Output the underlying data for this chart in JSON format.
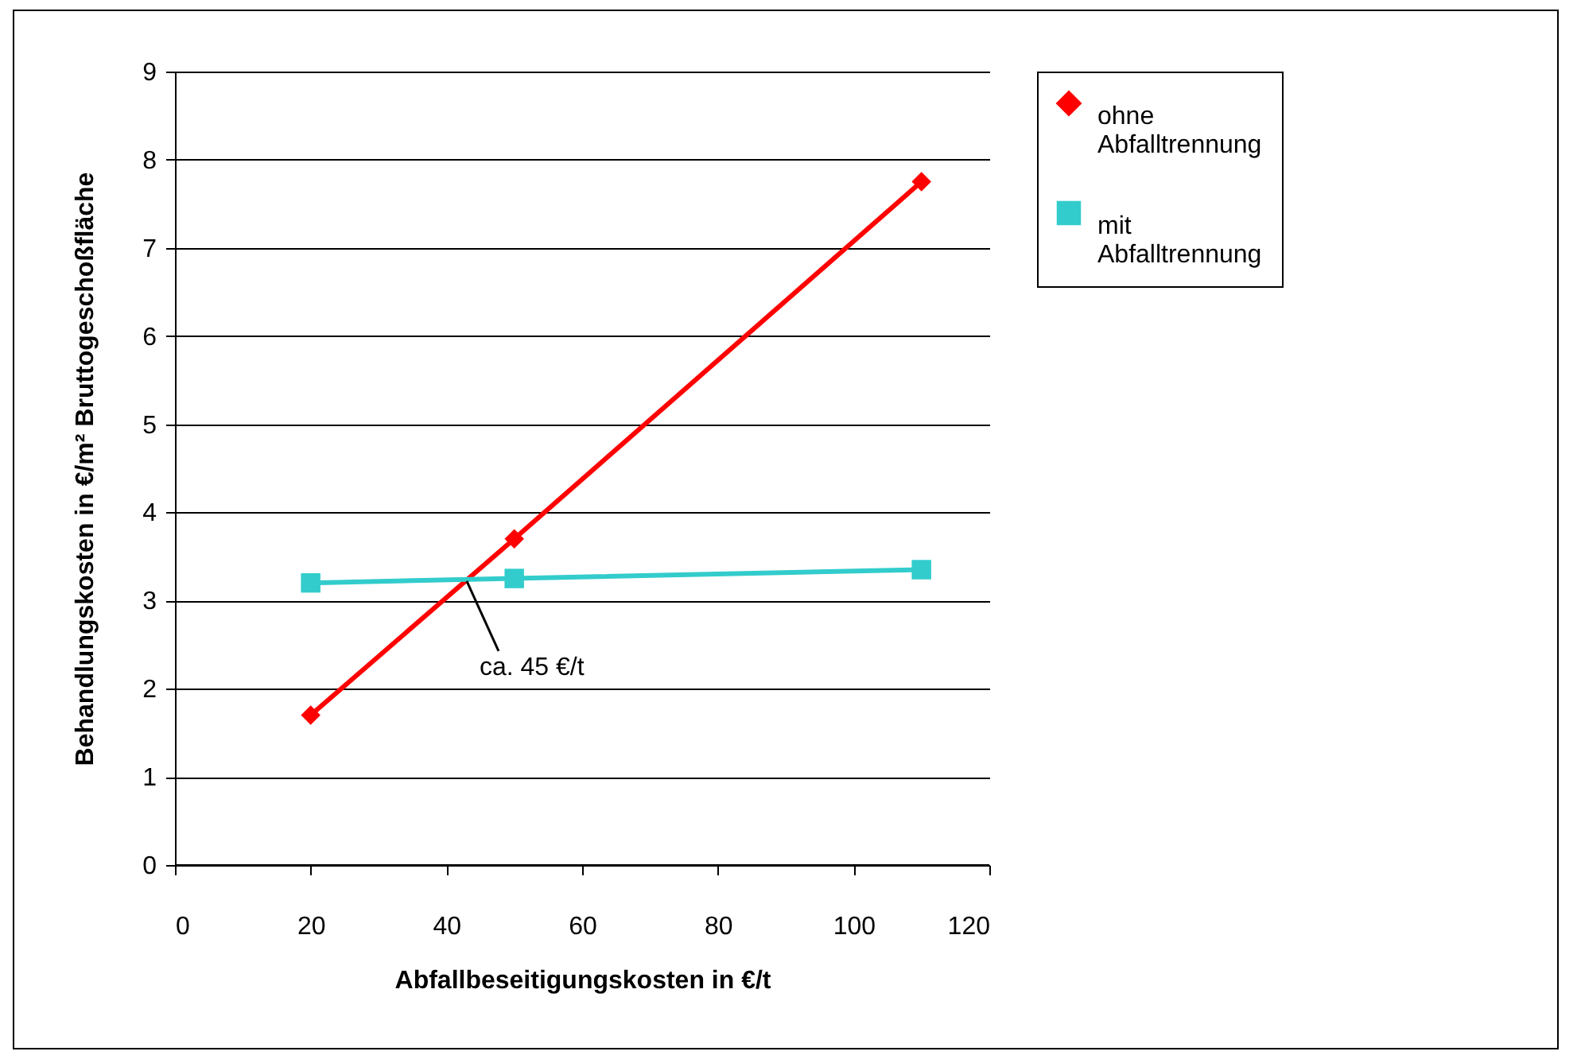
{
  "chart_data": {
    "type": "line",
    "xlabel": "Abfallbeseitigungskosten in €/t",
    "ylabel": "Behandlungskosten in €/m² Bruttogeschoßfläche",
    "x": [
      20,
      50,
      110
    ],
    "series": [
      {
        "name": "ohne Abfalltrennung",
        "color": "#ff0000",
        "marker": "diamond",
        "values": [
          1.7,
          3.7,
          7.75
        ]
      },
      {
        "name": "mit Abfalltrennung",
        "color": "#33cccc",
        "marker": "square",
        "values": [
          3.2,
          3.25,
          3.35
        ]
      }
    ],
    "xlim": [
      0,
      120
    ],
    "xticks": [
      0,
      20,
      40,
      60,
      80,
      100,
      120
    ],
    "ylim": [
      0,
      9
    ],
    "yticks": [
      0,
      1,
      2,
      3,
      4,
      5,
      6,
      7,
      8,
      9
    ],
    "grid": "y",
    "legend": "right",
    "line_style": "solid",
    "annotations": [
      {
        "text": "ca. 45 €/t",
        "x": 43,
        "y": 3.22
      }
    ]
  }
}
